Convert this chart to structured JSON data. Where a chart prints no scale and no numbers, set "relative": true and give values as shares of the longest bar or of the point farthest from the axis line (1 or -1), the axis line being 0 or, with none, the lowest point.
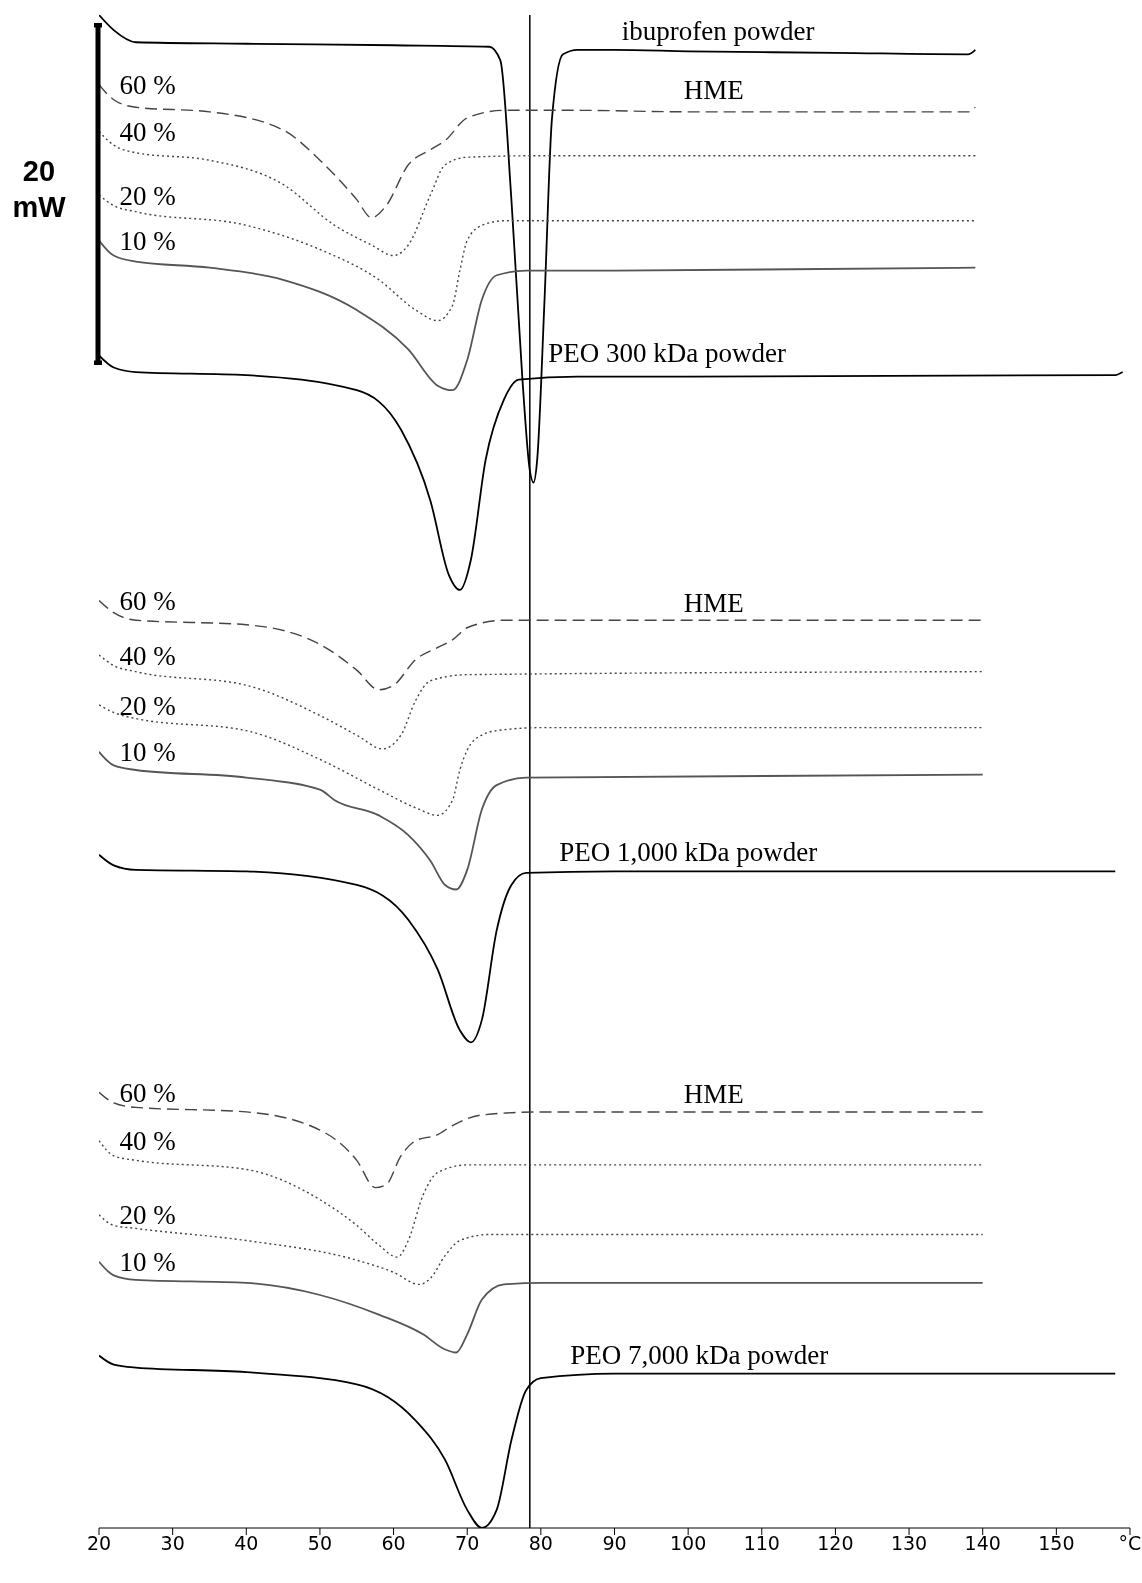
{
  "chart_data": {
    "type": "line",
    "relative": true,
    "xlim": [
      20,
      160
    ],
    "xticks": [
      20,
      30,
      40,
      50,
      60,
      70,
      80,
      90,
      100,
      110,
      120,
      130,
      140,
      150,
      {
        "value": 160,
        "label": "°C"
      }
    ],
    "marker": "none",
    "ref_lines": [
      {
        "axis": "x",
        "value": 78.5,
        "color": "#000000"
      }
    ],
    "annotations": [
      "20 mW",
      "HME",
      "HME",
      "HME"
    ],
    "series": [
      {
        "name": "ibuprofen powder",
        "color": "#000000",
        "line_style": "solid",
        "x": [
          20,
          22,
          25,
          40,
          60,
          73,
          74.5,
          76,
          77.5,
          78.5,
          79,
          79.5,
          80.5,
          81.5,
          83,
          85,
          90,
          100,
          120,
          138,
          139
        ],
        "values": [
          1.0,
          0.99,
          0.982,
          0.981,
          0.98,
          0.979,
          0.97,
          0.878,
          0.759,
          0.699,
          0.691,
          0.706,
          0.812,
          0.931,
          0.974,
          0.977,
          0.977,
          0.976,
          0.975,
          0.974,
          0.977
        ]
      },
      {
        "name": "60 %",
        "color": "#444444",
        "line_style": "dashed",
        "x": [
          20,
          22,
          25,
          35,
          45,
          50,
          55,
          57,
          59,
          62,
          65,
          67,
          70,
          75,
          85,
          100,
          138,
          139
        ],
        "values": [
          0.954,
          0.944,
          0.939,
          0.936,
          0.924,
          0.904,
          0.878,
          0.866,
          0.874,
          0.901,
          0.911,
          0.917,
          0.932,
          0.937,
          0.937,
          0.936,
          0.936,
          0.939
        ]
      },
      {
        "name": "40 %",
        "color": "#444444",
        "line_style": "dotted",
        "x": [
          20,
          22,
          25,
          35,
          45,
          52,
          57,
          60,
          62,
          65,
          67,
          70,
          80,
          139
        ],
        "values": [
          0.923,
          0.914,
          0.909,
          0.904,
          0.888,
          0.861,
          0.848,
          0.841,
          0.848,
          0.881,
          0.901,
          0.906,
          0.907,
          0.907
        ]
      },
      {
        "name": "20 %",
        "color": "#444444",
        "line_style": "dotted",
        "x": [
          20,
          22,
          25,
          40,
          50,
          58,
          63,
          66,
          68,
          69,
          70,
          72,
          75,
          90,
          139
        ],
        "values": [
          0.881,
          0.874,
          0.87,
          0.861,
          0.845,
          0.825,
          0.805,
          0.798,
          0.808,
          0.831,
          0.851,
          0.861,
          0.864,
          0.864,
          0.864
        ]
      },
      {
        "name": "10 %",
        "color": "#555555",
        "line_style": "solid",
        "x": [
          20,
          22,
          25,
          35,
          45,
          55,
          62,
          66,
          68,
          70,
          72,
          74,
          78,
          90,
          139
        ],
        "values": [
          0.851,
          0.841,
          0.837,
          0.833,
          0.825,
          0.805,
          0.779,
          0.755,
          0.752,
          0.772,
          0.812,
          0.828,
          0.831,
          0.831,
          0.833
        ]
      },
      {
        "name": "PEO 300 kDa powder",
        "color": "#000000",
        "line_style": "solid",
        "x": [
          20,
          22,
          25,
          40,
          55,
          61,
          65,
          67.5,
          69,
          70.5,
          72.5,
          75,
          77,
          85,
          100,
          158,
          159
        ],
        "values": [
          0.775,
          0.767,
          0.764,
          0.762,
          0.752,
          0.726,
          0.679,
          0.63,
          0.62,
          0.64,
          0.706,
          0.746,
          0.759,
          0.761,
          0.761,
          0.762,
          0.764
        ]
      },
      {
        "name": "60 %",
        "color": "#444444",
        "line_style": "dashed",
        "x": [
          20,
          22,
          25,
          40,
          50,
          55,
          58,
          60,
          63,
          66,
          68,
          70,
          75,
          140
        ],
        "values": [
          0.613,
          0.605,
          0.6,
          0.597,
          0.584,
          0.567,
          0.554,
          0.557,
          0.574,
          0.582,
          0.587,
          0.595,
          0.6,
          0.6
        ]
      },
      {
        "name": "40 %",
        "color": "#444444",
        "line_style": "dotted",
        "x": [
          20,
          22,
          25,
          40,
          50,
          55,
          58.5,
          61,
          63,
          65,
          70,
          140
        ],
        "values": [
          0.577,
          0.57,
          0.566,
          0.557,
          0.537,
          0.524,
          0.515,
          0.524,
          0.547,
          0.56,
          0.564,
          0.566
        ]
      },
      {
        "name": "20 %",
        "color": "#444444",
        "line_style": "dotted",
        "x": [
          20,
          22,
          25,
          40,
          50,
          58,
          63,
          66,
          68,
          69,
          71,
          74,
          80,
          140
        ],
        "values": [
          0.544,
          0.539,
          0.535,
          0.527,
          0.508,
          0.488,
          0.476,
          0.471,
          0.481,
          0.501,
          0.521,
          0.527,
          0.529,
          0.529
        ]
      },
      {
        "name": "10 %",
        "color": "#555555",
        "line_style": "solid",
        "x": [
          20,
          22,
          25,
          40,
          50,
          52,
          58,
          62,
          65,
          67,
          68.5,
          70,
          72,
          74,
          78,
          140
        ],
        "values": [
          0.513,
          0.504,
          0.501,
          0.496,
          0.488,
          0.481,
          0.471,
          0.458,
          0.441,
          0.425,
          0.422,
          0.435,
          0.475,
          0.491,
          0.496,
          0.498
        ]
      },
      {
        "name": "PEO 1,000 kDa powder",
        "color": "#000000",
        "line_style": "solid",
        "x": [
          20,
          22,
          25,
          40,
          55,
          62,
          66,
          69,
          70.5,
          72,
          74,
          76,
          78,
          90,
          158
        ],
        "values": [
          0.445,
          0.438,
          0.435,
          0.434,
          0.425,
          0.402,
          0.369,
          0.329,
          0.321,
          0.336,
          0.395,
          0.425,
          0.433,
          0.434,
          0.434
        ]
      },
      {
        "name": "60 %",
        "color": "#444444",
        "line_style": "dashed",
        "x": [
          20,
          22,
          25,
          40,
          50,
          55,
          57.5,
          59,
          61,
          63,
          66,
          68,
          72,
          80,
          140
        ],
        "values": [
          0.288,
          0.281,
          0.278,
          0.275,
          0.263,
          0.243,
          0.225,
          0.227,
          0.246,
          0.256,
          0.26,
          0.266,
          0.273,
          0.275,
          0.275
        ]
      },
      {
        "name": "40 %",
        "color": "#444444",
        "line_style": "dotted",
        "x": [
          20,
          22,
          25,
          40,
          50,
          55,
          58,
          60.5,
          62,
          64,
          66,
          70,
          140
        ],
        "values": [
          0.256,
          0.246,
          0.243,
          0.237,
          0.217,
          0.2,
          0.187,
          0.179,
          0.19,
          0.22,
          0.235,
          0.24,
          0.24
        ]
      },
      {
        "name": "20 %",
        "color": "#444444",
        "line_style": "dotted",
        "x": [
          20,
          22,
          25,
          40,
          55,
          60,
          63.5,
          65,
          67,
          69,
          73,
          80,
          140
        ],
        "values": [
          0.207,
          0.2,
          0.198,
          0.19,
          0.177,
          0.169,
          0.161,
          0.165,
          0.18,
          0.19,
          0.194,
          0.194,
          0.194
        ]
      },
      {
        "name": "10 %",
        "color": "#555555",
        "line_style": "solid",
        "x": [
          20,
          22,
          25,
          40,
          50,
          58,
          64,
          67,
          68.5,
          70,
          72,
          75,
          80,
          140
        ],
        "values": [
          0.176,
          0.167,
          0.164,
          0.162,
          0.154,
          0.141,
          0.128,
          0.118,
          0.116,
          0.128,
          0.151,
          0.161,
          0.162,
          0.162
        ]
      },
      {
        "name": "PEO 7,000 kDa powder",
        "color": "#000000",
        "line_style": "solid",
        "x": [
          20,
          22,
          25,
          40,
          55,
          63,
          67,
          70,
          72,
          74,
          76,
          78,
          80,
          90,
          158
        ],
        "values": [
          0.114,
          0.108,
          0.106,
          0.103,
          0.095,
          0.071,
          0.045,
          0.012,
          0.0,
          0.012,
          0.058,
          0.091,
          0.099,
          0.102,
          0.102
        ]
      }
    ]
  }
}
